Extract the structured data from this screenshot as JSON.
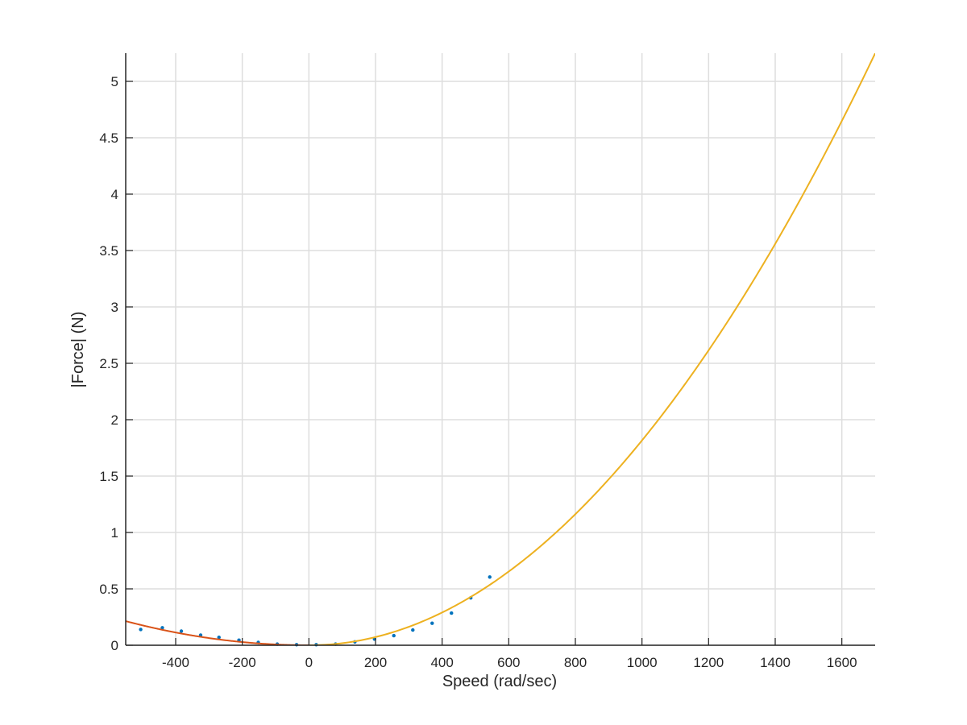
{
  "chart_data": {
    "type": "scatter",
    "xlabel": "Speed (rad/sec)",
    "ylabel": "|Force| (N)",
    "xlim": [
      -550,
      1700
    ],
    "ylim": [
      0,
      5.25
    ],
    "xticks": [
      -400,
      -200,
      0,
      200,
      400,
      600,
      800,
      1000,
      1200,
      1400,
      1600
    ],
    "xtick_labels": [
      "-400",
      "-200",
      "0",
      "200",
      "400",
      "600",
      "800",
      "1000",
      "1200",
      "1400",
      "1600"
    ],
    "yticks": [
      0,
      0.5,
      1,
      1.5,
      2,
      2.5,
      3,
      3.5,
      4,
      4.5,
      5
    ],
    "ytick_labels": [
      "0",
      "0.5",
      "1",
      "1.5",
      "2",
      "2.5",
      "3",
      "3.5",
      "4",
      "4.5",
      "5"
    ],
    "grid": true,
    "legend": "none",
    "series": [
      {
        "kind": "scatter",
        "color": "#0072bd",
        "points": [
          [
            -505,
            0.14
          ],
          [
            -440,
            0.155
          ],
          [
            -383,
            0.125
          ],
          [
            -325,
            0.09
          ],
          [
            -270,
            0.07
          ],
          [
            -210,
            0.045
          ],
          [
            -152,
            0.025
          ],
          [
            -95,
            0.01
          ],
          [
            -37,
            0.005
          ],
          [
            22,
            0.005
          ],
          [
            80,
            0.01
          ],
          [
            138,
            0.03
          ],
          [
            197,
            0.055
          ],
          [
            255,
            0.085
          ],
          [
            312,
            0.135
          ],
          [
            370,
            0.195
          ],
          [
            428,
            0.285
          ],
          [
            486,
            0.42
          ],
          [
            543,
            0.605
          ]
        ]
      },
      {
        "kind": "curve",
        "color": "#d95319",
        "model": "quadratic",
        "coefficient": 7.07e-07,
        "domain": [
          -550,
          0
        ]
      },
      {
        "kind": "curve",
        "color": "#edb120",
        "model": "quadratic",
        "coefficient": 1.816e-06,
        "domain": [
          0,
          1700
        ]
      }
    ]
  }
}
